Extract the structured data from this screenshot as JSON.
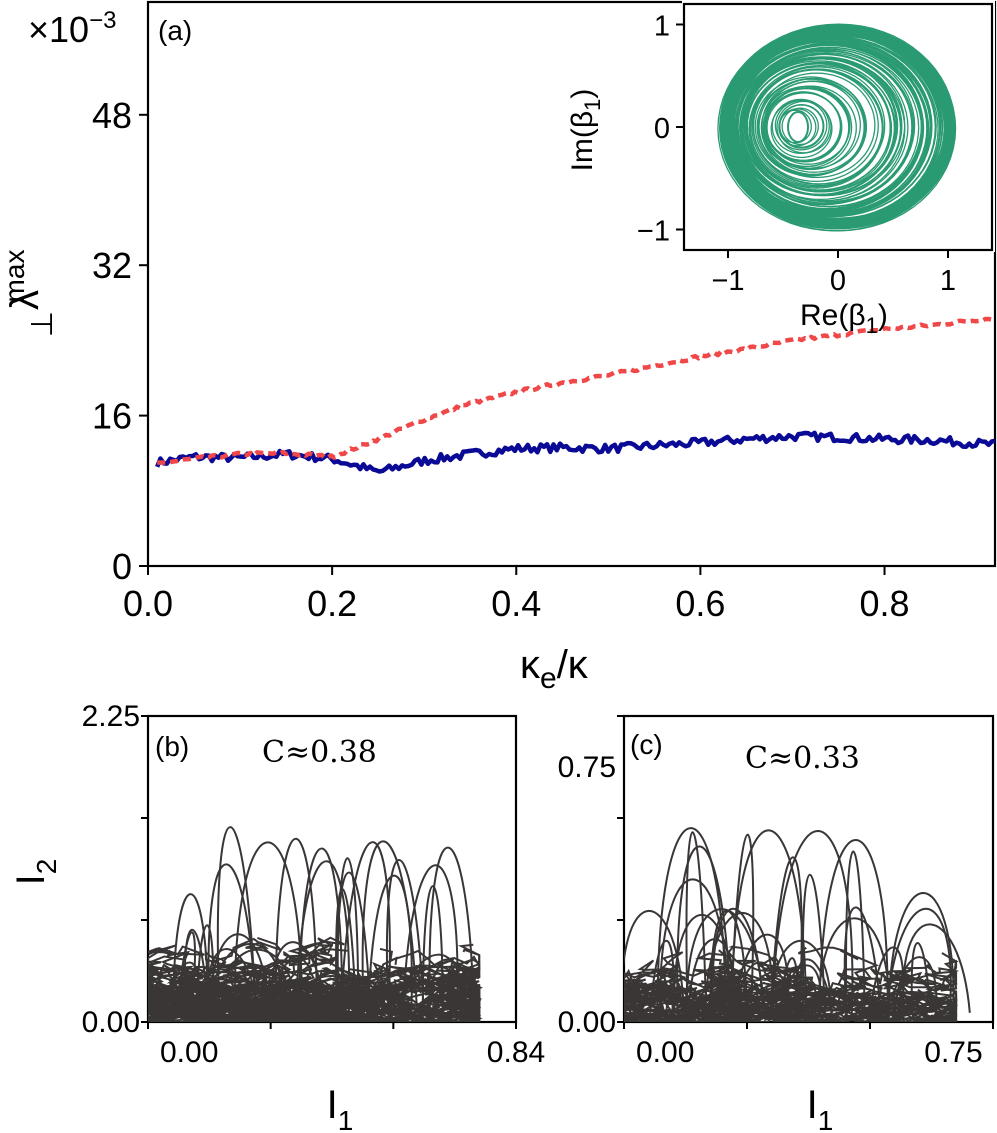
{
  "figure": {
    "panel_a_label": "(a)",
    "panel_b_label": "(b)",
    "panel_c_label": "(c)",
    "offset_text_prefix": "×10",
    "offset_text_exp": "−3",
    "ylabel_main": "λ",
    "ylabel_sup": "max",
    "ylabel_sub": "⊥",
    "xlabel_main": "κ",
    "xlabel_sub": "e",
    "xlabel_tail": "/κ",
    "inset_xlabel_pre": "Re(β",
    "inset_xlabel_sub": "1",
    "inset_xlabel_post": ")",
    "inset_ylabel_pre": "Im(β",
    "inset_ylabel_sub": "1",
    "inset_ylabel_post": ")",
    "b_annotation": "C≈0.38",
    "c_annotation": "C≈0.33",
    "b_xlabel": "I",
    "b_xlabel_sub": "1",
    "b_ylabel": "I",
    "b_ylabel_sub": "2",
    "c_xlabel": "I",
    "c_xlabel_sub": "1"
  },
  "chart_data": [
    {
      "panel": "(a)",
      "type": "line",
      "xlabel": "κe/κ",
      "ylabel": "λ⊥max",
      "xlim": [
        0,
        0.92
      ],
      "ylim": [
        0,
        0.06
      ],
      "xticks": [
        "0.0",
        "0.2",
        "0.4",
        "0.6",
        "0.8"
      ],
      "yticks": [
        "0",
        "16",
        "32",
        "48"
      ],
      "y_scale_factor": "×10⁻³",
      "colors": {
        "solid": "#0a0a96",
        "dashed": "#f04848"
      },
      "series": [
        {
          "style": "solid",
          "x": [
            0.01,
            0.05,
            0.1,
            0.15,
            0.2,
            0.25,
            0.3,
            0.35,
            0.4,
            0.45,
            0.5,
            0.55,
            0.6,
            0.65,
            0.7,
            0.75,
            0.8,
            0.85,
            0.92
          ],
          "y": [
            11.0,
            11.6,
            11.5,
            11.9,
            11.4,
            10.0,
            11.2,
            11.9,
            12.5,
            12.6,
            12.5,
            12.8,
            13.1,
            13.5,
            13.8,
            13.7,
            13.5,
            13.4,
            12.9
          ]
        },
        {
          "style": "dashed",
          "x": [
            0.01,
            0.05,
            0.1,
            0.15,
            0.2,
            0.25,
            0.3,
            0.35,
            0.4,
            0.45,
            0.5,
            0.55,
            0.6,
            0.65,
            0.7,
            0.75,
            0.8,
            0.85,
            0.92
          ],
          "y": [
            10.9,
            11.4,
            11.9,
            12.0,
            11.6,
            13.5,
            15.6,
            17.3,
            18.5,
            19.5,
            20.3,
            21.3,
            22.3,
            23.1,
            24.0,
            24.6,
            25.2,
            25.6,
            26.4
          ]
        }
      ]
    },
    {
      "panel": "(a) inset",
      "type": "line",
      "xlabel": "Re(β1)",
      "ylabel": "Im(β1)",
      "xlim": [
        -1.4,
        1.4
      ],
      "ylim": [
        -1.2,
        1.2
      ],
      "xticks": [
        "−1",
        "0",
        "1"
      ],
      "yticks": [
        "−1",
        "0",
        "1"
      ],
      "color": "#2a9a72",
      "description_of_series": "dense chaotic trajectory",
      "annulus": {
        "outer_re": [
          -1.07,
          1.07
        ],
        "outer_im": [
          -1.0,
          1.0
        ],
        "hole_center": [
          -0.4,
          0.0
        ]
      }
    },
    {
      "panel": "(b)",
      "type": "line",
      "xlabel": "I1",
      "ylabel": "I2",
      "xlim": [
        0,
        0.84
      ],
      "ylim": [
        0,
        2.25
      ],
      "xticks": [
        "0.00",
        "0.84"
      ],
      "yticks": [
        "0.00",
        "2.25"
      ],
      "color": "#3a3636",
      "annotation": "C≈0.38"
    },
    {
      "panel": "(c)",
      "type": "line",
      "xlabel": "I1",
      "xlim": [
        0,
        0.84
      ],
      "ylim": [
        0,
        0.9
      ],
      "xticks": [
        "0.00",
        "0.75"
      ],
      "yticks": [
        "0.00",
        "0.75"
      ],
      "color": "#3a3636",
      "annotation": "C≈0.33"
    }
  ]
}
